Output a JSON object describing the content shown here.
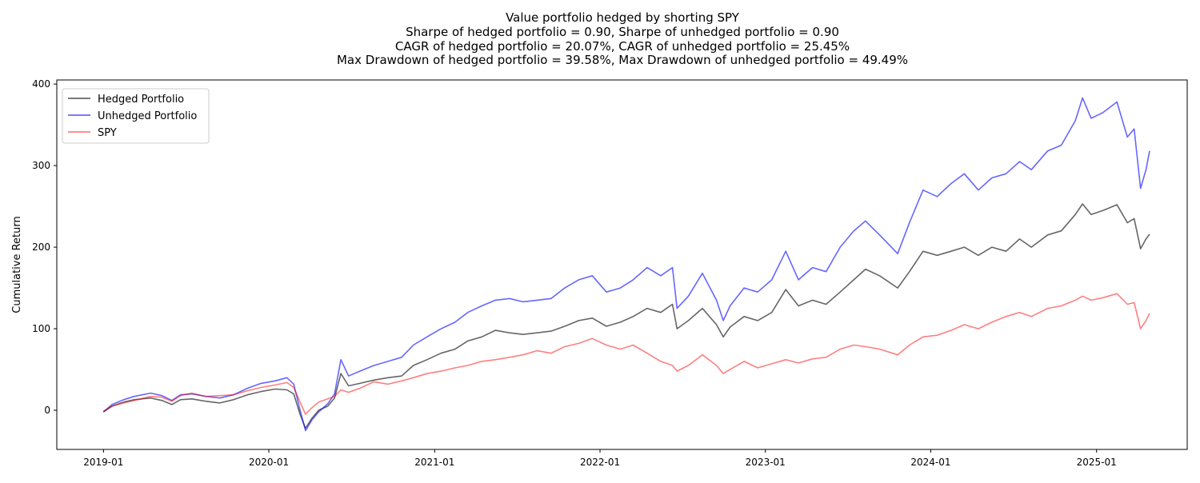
{
  "chart_data": {
    "type": "line",
    "title_lines": [
      "Value portfolio hedged by shorting SPY",
      "Sharpe of hedged portfolio = 0.90, Sharpe of unhedged portfolio = 0.90",
      "CAGR of hedged portfolio = 20.07%, CAGR of unhedged portfolio = 25.45%",
      "Max Drawdown of hedged portfolio = 39.58%, Max Drawdown of unhedged portfolio = 49.49%"
    ],
    "xlabel": "",
    "ylabel": "Cumulative Return",
    "x_ticks": [
      "2019-01",
      "2020-01",
      "2021-01",
      "2022-01",
      "2023-01",
      "2024-01",
      "2025-01"
    ],
    "y_ticks": [
      0,
      100,
      200,
      300,
      400
    ],
    "xlim": [
      "2018-09-20",
      "2025-07-20"
    ],
    "ylim": [
      -48,
      405
    ],
    "grid": false,
    "legend_position": "upper left",
    "series": [
      {
        "name": "Hedged Portfolio",
        "color": "#000000",
        "opacity": 0.6,
        "points": [
          [
            "2019-01-01",
            -2
          ],
          [
            "2019-01-20",
            5
          ],
          [
            "2019-02-15",
            10
          ],
          [
            "2019-03-10",
            13
          ],
          [
            "2019-04-15",
            15
          ],
          [
            "2019-05-10",
            12
          ],
          [
            "2019-06-01",
            7
          ],
          [
            "2019-06-20",
            13
          ],
          [
            "2019-07-15",
            14
          ],
          [
            "2019-08-15",
            11
          ],
          [
            "2019-09-15",
            9
          ],
          [
            "2019-10-15",
            13
          ],
          [
            "2019-11-15",
            19
          ],
          [
            "2019-12-15",
            23
          ],
          [
            "2020-01-15",
            26
          ],
          [
            "2020-02-10",
            25
          ],
          [
            "2020-02-25",
            20
          ],
          [
            "2020-03-10",
            -5
          ],
          [
            "2020-03-22",
            -22
          ],
          [
            "2020-04-05",
            -10
          ],
          [
            "2020-04-20",
            0
          ],
          [
            "2020-05-10",
            5
          ],
          [
            "2020-05-25",
            15
          ],
          [
            "2020-06-08",
            45
          ],
          [
            "2020-06-25",
            30
          ],
          [
            "2020-07-20",
            33
          ],
          [
            "2020-08-20",
            37
          ],
          [
            "2020-09-20",
            40
          ],
          [
            "2020-10-20",
            42
          ],
          [
            "2020-11-15",
            55
          ],
          [
            "2020-12-15",
            62
          ],
          [
            "2021-01-15",
            70
          ],
          [
            "2021-02-15",
            75
          ],
          [
            "2021-03-15",
            85
          ],
          [
            "2021-04-15",
            90
          ],
          [
            "2021-05-15",
            98
          ],
          [
            "2021-06-15",
            95
          ],
          [
            "2021-07-15",
            93
          ],
          [
            "2021-08-15",
            95
          ],
          [
            "2021-09-15",
            97
          ],
          [
            "2021-10-15",
            103
          ],
          [
            "2021-11-15",
            110
          ],
          [
            "2021-12-15",
            113
          ],
          [
            "2022-01-15",
            103
          ],
          [
            "2022-02-15",
            108
          ],
          [
            "2022-03-15",
            115
          ],
          [
            "2022-04-15",
            125
          ],
          [
            "2022-05-15",
            120
          ],
          [
            "2022-06-10",
            130
          ],
          [
            "2022-06-20",
            100
          ],
          [
            "2022-07-15",
            110
          ],
          [
            "2022-08-15",
            125
          ],
          [
            "2022-09-15",
            105
          ],
          [
            "2022-09-30",
            90
          ],
          [
            "2022-10-15",
            102
          ],
          [
            "2022-11-15",
            115
          ],
          [
            "2022-12-15",
            110
          ],
          [
            "2023-01-15",
            120
          ],
          [
            "2023-02-15",
            148
          ],
          [
            "2023-03-15",
            128
          ],
          [
            "2023-04-15",
            135
          ],
          [
            "2023-05-15",
            130
          ],
          [
            "2023-06-15",
            145
          ],
          [
            "2023-07-15",
            160
          ],
          [
            "2023-08-10",
            173
          ],
          [
            "2023-09-10",
            165
          ],
          [
            "2023-10-20",
            150
          ],
          [
            "2023-11-15",
            170
          ],
          [
            "2023-12-15",
            195
          ],
          [
            "2024-01-15",
            190
          ],
          [
            "2024-02-15",
            195
          ],
          [
            "2024-03-15",
            200
          ],
          [
            "2024-04-15",
            190
          ],
          [
            "2024-05-15",
            200
          ],
          [
            "2024-06-15",
            195
          ],
          [
            "2024-07-15",
            210
          ],
          [
            "2024-08-10",
            200
          ],
          [
            "2024-09-15",
            215
          ],
          [
            "2024-10-15",
            220
          ],
          [
            "2024-11-15",
            240
          ],
          [
            "2024-12-01",
            253
          ],
          [
            "2024-12-20",
            240
          ],
          [
            "2025-01-15",
            245
          ],
          [
            "2025-02-15",
            252
          ],
          [
            "2025-03-10",
            230
          ],
          [
            "2025-03-25",
            235
          ],
          [
            "2025-04-08",
            198
          ],
          [
            "2025-04-20",
            210
          ],
          [
            "2025-04-28",
            216
          ]
        ]
      },
      {
        "name": "Unhedged Portfolio",
        "color": "#0000ff",
        "opacity": 0.6,
        "points": [
          [
            "2019-01-01",
            -2
          ],
          [
            "2019-01-20",
            7
          ],
          [
            "2019-02-15",
            13
          ],
          [
            "2019-03-10",
            17
          ],
          [
            "2019-04-15",
            21
          ],
          [
            "2019-05-10",
            18
          ],
          [
            "2019-06-01",
            12
          ],
          [
            "2019-06-20",
            19
          ],
          [
            "2019-07-15",
            20
          ],
          [
            "2019-08-15",
            17
          ],
          [
            "2019-09-15",
            15
          ],
          [
            "2019-10-15",
            19
          ],
          [
            "2019-11-15",
            27
          ],
          [
            "2019-12-15",
            33
          ],
          [
            "2020-01-15",
            36
          ],
          [
            "2020-02-10",
            40
          ],
          [
            "2020-02-25",
            32
          ],
          [
            "2020-03-10",
            0
          ],
          [
            "2020-03-22",
            -25
          ],
          [
            "2020-04-05",
            -12
          ],
          [
            "2020-04-20",
            -2
          ],
          [
            "2020-05-10",
            8
          ],
          [
            "2020-05-25",
            20
          ],
          [
            "2020-06-08",
            62
          ],
          [
            "2020-06-25",
            42
          ],
          [
            "2020-07-20",
            48
          ],
          [
            "2020-08-20",
            55
          ],
          [
            "2020-09-20",
            60
          ],
          [
            "2020-10-20",
            65
          ],
          [
            "2020-11-15",
            80
          ],
          [
            "2020-12-15",
            90
          ],
          [
            "2021-01-15",
            100
          ],
          [
            "2021-02-15",
            108
          ],
          [
            "2021-03-15",
            120
          ],
          [
            "2021-04-15",
            128
          ],
          [
            "2021-05-15",
            135
          ],
          [
            "2021-06-15",
            137
          ],
          [
            "2021-07-15",
            133
          ],
          [
            "2021-08-15",
            135
          ],
          [
            "2021-09-15",
            137
          ],
          [
            "2021-10-15",
            150
          ],
          [
            "2021-11-15",
            160
          ],
          [
            "2021-12-15",
            165
          ],
          [
            "2022-01-15",
            145
          ],
          [
            "2022-02-15",
            150
          ],
          [
            "2022-03-15",
            160
          ],
          [
            "2022-04-15",
            175
          ],
          [
            "2022-05-15",
            165
          ],
          [
            "2022-06-10",
            175
          ],
          [
            "2022-06-20",
            125
          ],
          [
            "2022-07-15",
            140
          ],
          [
            "2022-08-15",
            168
          ],
          [
            "2022-09-15",
            135
          ],
          [
            "2022-09-30",
            110
          ],
          [
            "2022-10-15",
            128
          ],
          [
            "2022-11-15",
            150
          ],
          [
            "2022-12-15",
            145
          ],
          [
            "2023-01-15",
            160
          ],
          [
            "2023-02-15",
            195
          ],
          [
            "2023-03-15",
            160
          ],
          [
            "2023-04-15",
            175
          ],
          [
            "2023-05-15",
            170
          ],
          [
            "2023-06-15",
            200
          ],
          [
            "2023-07-15",
            220
          ],
          [
            "2023-08-10",
            232
          ],
          [
            "2023-09-10",
            215
          ],
          [
            "2023-10-20",
            192
          ],
          [
            "2023-11-15",
            230
          ],
          [
            "2023-12-15",
            270
          ],
          [
            "2024-01-15",
            262
          ],
          [
            "2024-02-15",
            278
          ],
          [
            "2024-03-15",
            290
          ],
          [
            "2024-04-15",
            270
          ],
          [
            "2024-05-15",
            285
          ],
          [
            "2024-06-15",
            290
          ],
          [
            "2024-07-15",
            305
          ],
          [
            "2024-08-10",
            295
          ],
          [
            "2024-09-15",
            318
          ],
          [
            "2024-10-15",
            325
          ],
          [
            "2024-11-15",
            355
          ],
          [
            "2024-12-01",
            383
          ],
          [
            "2024-12-20",
            358
          ],
          [
            "2025-01-15",
            365
          ],
          [
            "2025-02-15",
            378
          ],
          [
            "2025-03-10",
            335
          ],
          [
            "2025-03-25",
            345
          ],
          [
            "2025-04-08",
            272
          ],
          [
            "2025-04-20",
            295
          ],
          [
            "2025-04-28",
            318
          ]
        ]
      },
      {
        "name": "SPY",
        "color": "#ff0000",
        "opacity": 0.5,
        "points": [
          [
            "2019-01-01",
            -1
          ],
          [
            "2019-01-20",
            5
          ],
          [
            "2019-02-15",
            9
          ],
          [
            "2019-03-10",
            12
          ],
          [
            "2019-04-15",
            17
          ],
          [
            "2019-05-10",
            16
          ],
          [
            "2019-06-01",
            11
          ],
          [
            "2019-06-20",
            18
          ],
          [
            "2019-07-15",
            21
          ],
          [
            "2019-08-15",
            17
          ],
          [
            "2019-09-15",
            18
          ],
          [
            "2019-10-15",
            19
          ],
          [
            "2019-11-15",
            24
          ],
          [
            "2019-12-15",
            28
          ],
          [
            "2020-01-15",
            31
          ],
          [
            "2020-02-10",
            34
          ],
          [
            "2020-02-25",
            28
          ],
          [
            "2020-03-10",
            10
          ],
          [
            "2020-03-22",
            -5
          ],
          [
            "2020-04-05",
            3
          ],
          [
            "2020-04-20",
            10
          ],
          [
            "2020-05-10",
            14
          ],
          [
            "2020-05-25",
            17
          ],
          [
            "2020-06-08",
            25
          ],
          [
            "2020-06-25",
            22
          ],
          [
            "2020-07-20",
            27
          ],
          [
            "2020-08-20",
            35
          ],
          [
            "2020-09-20",
            32
          ],
          [
            "2020-10-20",
            36
          ],
          [
            "2020-11-15",
            40
          ],
          [
            "2020-12-15",
            45
          ],
          [
            "2021-01-15",
            48
          ],
          [
            "2021-02-15",
            52
          ],
          [
            "2021-03-15",
            55
          ],
          [
            "2021-04-15",
            60
          ],
          [
            "2021-05-15",
            62
          ],
          [
            "2021-06-15",
            65
          ],
          [
            "2021-07-15",
            68
          ],
          [
            "2021-08-15",
            73
          ],
          [
            "2021-09-15",
            70
          ],
          [
            "2021-10-15",
            78
          ],
          [
            "2021-11-15",
            82
          ],
          [
            "2021-12-15",
            88
          ],
          [
            "2022-01-15",
            80
          ],
          [
            "2022-02-15",
            75
          ],
          [
            "2022-03-15",
            80
          ],
          [
            "2022-04-15",
            70
          ],
          [
            "2022-05-15",
            60
          ],
          [
            "2022-06-10",
            55
          ],
          [
            "2022-06-20",
            48
          ],
          [
            "2022-07-15",
            55
          ],
          [
            "2022-08-15",
            68
          ],
          [
            "2022-09-15",
            55
          ],
          [
            "2022-09-30",
            45
          ],
          [
            "2022-10-15",
            50
          ],
          [
            "2022-11-15",
            60
          ],
          [
            "2022-12-15",
            52
          ],
          [
            "2023-01-15",
            57
          ],
          [
            "2023-02-15",
            62
          ],
          [
            "2023-03-15",
            58
          ],
          [
            "2023-04-15",
            63
          ],
          [
            "2023-05-15",
            65
          ],
          [
            "2023-06-15",
            75
          ],
          [
            "2023-07-15",
            80
          ],
          [
            "2023-08-10",
            78
          ],
          [
            "2023-09-10",
            75
          ],
          [
            "2023-10-20",
            68
          ],
          [
            "2023-11-15",
            80
          ],
          [
            "2023-12-15",
            90
          ],
          [
            "2024-01-15",
            92
          ],
          [
            "2024-02-15",
            98
          ],
          [
            "2024-03-15",
            105
          ],
          [
            "2024-04-15",
            100
          ],
          [
            "2024-05-15",
            108
          ],
          [
            "2024-06-15",
            115
          ],
          [
            "2024-07-15",
            120
          ],
          [
            "2024-08-10",
            115
          ],
          [
            "2024-09-15",
            125
          ],
          [
            "2024-10-15",
            128
          ],
          [
            "2024-11-15",
            135
          ],
          [
            "2024-12-01",
            140
          ],
          [
            "2024-12-20",
            135
          ],
          [
            "2025-01-15",
            138
          ],
          [
            "2025-02-15",
            143
          ],
          [
            "2025-03-10",
            130
          ],
          [
            "2025-03-25",
            132
          ],
          [
            "2025-04-08",
            100
          ],
          [
            "2025-04-20",
            110
          ],
          [
            "2025-04-28",
            119
          ]
        ]
      }
    ]
  }
}
